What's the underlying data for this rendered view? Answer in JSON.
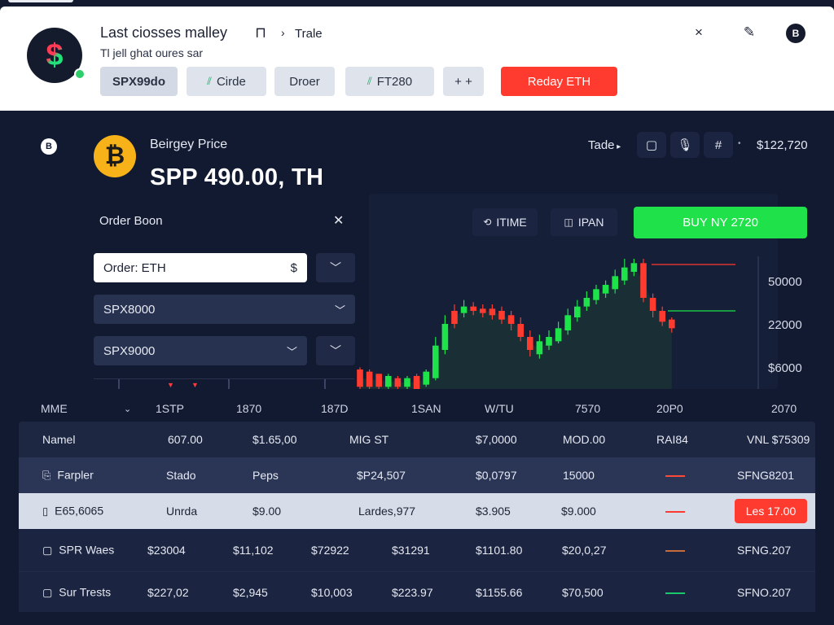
{
  "header": {
    "logo_icon": "dollar-logo-icon",
    "title": "Last ciosses malley",
    "nav_icon": "ꟷ⌐",
    "nav_label": "Trale",
    "subtitle": "Tl jell ghat oures sar",
    "tools": {
      "close": "×",
      "edit": "✎",
      "badge": "B"
    },
    "chips": [
      {
        "label": "SPX99do",
        "icon": ""
      },
      {
        "label": "Cirde",
        "icon": "⫽"
      },
      {
        "label": "Droer",
        "icon": ""
      },
      {
        "label": "FT280",
        "icon": "⫽"
      },
      {
        "label": "+ +",
        "icon": ""
      }
    ],
    "cta_label": "Reday ETH"
  },
  "asset": {
    "small_coin": "B",
    "coin_glyph": "₿",
    "price_label": "Beirgey Price",
    "price_value": "SPP 490.00,  TH",
    "trade_label": "Tade",
    "balance": "$122,720"
  },
  "order_book": {
    "title": "Order Boon",
    "input_value": "Order: ETH",
    "input_suffix": "$",
    "select_1": "SPX8000",
    "select_2": "SPX9000"
  },
  "chart_controls": {
    "time_label": "ITIME",
    "pan_label": "IPAN",
    "buy_label": "BUY NY 2720"
  },
  "chart_data": {
    "type": "candlestick",
    "y_ticks": [
      "50000",
      "22000",
      "$6000"
    ],
    "x_labels": [
      "MME",
      "1STP",
      "1870",
      "187D",
      "1SAN",
      "W/TU",
      "7570",
      "20P0",
      "2070"
    ],
    "axis_range": [
      0,
      60000
    ],
    "y_values": [
      60000,
      50000,
      22000,
      6000,
      0
    ],
    "candles": [
      [
        1,
        9,
        10,
        0,
        "d"
      ],
      [
        1,
        8,
        9,
        0,
        "d"
      ],
      [
        1,
        7,
        7,
        0,
        "d"
      ],
      [
        1,
        6,
        7,
        0,
        "u"
      ],
      [
        1,
        5,
        6,
        0,
        "d"
      ],
      [
        1,
        5,
        6,
        0,
        "u"
      ],
      [
        0,
        6,
        7,
        0,
        "d"
      ],
      [
        2,
        8,
        9,
        1,
        "u"
      ],
      [
        5,
        20,
        24,
        4,
        "u"
      ],
      [
        18,
        30,
        34,
        16,
        "u"
      ],
      [
        30,
        36,
        39,
        28,
        "d"
      ],
      [
        35,
        38,
        41,
        33,
        "u"
      ],
      [
        36,
        38,
        40,
        34,
        "d"
      ],
      [
        35,
        37,
        39,
        33,
        "d"
      ],
      [
        34,
        37,
        39,
        32,
        "d"
      ],
      [
        32,
        36,
        38,
        30,
        "d"
      ],
      [
        30,
        34,
        36,
        27,
        "d"
      ],
      [
        24,
        30,
        33,
        22,
        "d"
      ],
      [
        18,
        24,
        27,
        15,
        "d"
      ],
      [
        16,
        22,
        25,
        14,
        "u"
      ],
      [
        20,
        24,
        27,
        18,
        "u"
      ],
      [
        22,
        28,
        31,
        21,
        "u"
      ],
      [
        27,
        34,
        37,
        25,
        "u"
      ],
      [
        33,
        38,
        41,
        31,
        "u"
      ],
      [
        38,
        42,
        45,
        36,
        "u"
      ],
      [
        41,
        46,
        48,
        39,
        "u"
      ],
      [
        44,
        48,
        50,
        42,
        "u"
      ],
      [
        46,
        52,
        55,
        44,
        "u"
      ],
      [
        50,
        56,
        60,
        48,
        "u"
      ],
      [
        54,
        58,
        60,
        52,
        "u"
      ],
      [
        42,
        58,
        60,
        40,
        "d"
      ],
      [
        36,
        42,
        44,
        33,
        "d"
      ],
      [
        31,
        36,
        38,
        29,
        "d"
      ],
      [
        28,
        32,
        33,
        26,
        "d"
      ]
    ]
  },
  "table": {
    "headers": [
      "Namel",
      "607.00",
      "$1.65,00",
      "MIG ST",
      "$7,0000",
      "MOD.00",
      "RAI84",
      "VNL $75309"
    ],
    "rows": [
      {
        "icon": "file-icon",
        "cells": [
          "Farpler",
          "Stado",
          "Peps",
          "$P24,507",
          "$0,0797",
          "15000",
          "",
          "SFNG8201"
        ],
        "dash_color": "#ff4a3a"
      },
      {
        "icon": "square-icon",
        "cells": [
          "E65,6065",
          "Unrda",
          "$9.00",
          "Lardes,977",
          "$3.905",
          "$9.000",
          "",
          "Les 17.00"
        ],
        "dash_color": "#ff3b2f"
      },
      {
        "icon": "square-icon",
        "cells": [
          "SPR Waes",
          "$23004",
          "$11,102",
          "$72922",
          "$31291",
          "$1101.80",
          "$20,0,27",
          "SFNG.207"
        ],
        "dash_color": "#c66b3a"
      },
      {
        "icon": "square-icon",
        "cells": [
          "Sur Trests",
          "$227,02",
          "$2,945",
          "$10,003",
          "$223.97",
          "$1155.66",
          "$70,500",
          "SFNO.207"
        ],
        "dash_color": "#19c86a"
      }
    ]
  },
  "colors": {
    "bull": "#1ee24a",
    "bear": "#ff3b2f",
    "panel": "#121a32",
    "accent_red": "#ff3b2f",
    "accent_green": "#1fe24a"
  }
}
